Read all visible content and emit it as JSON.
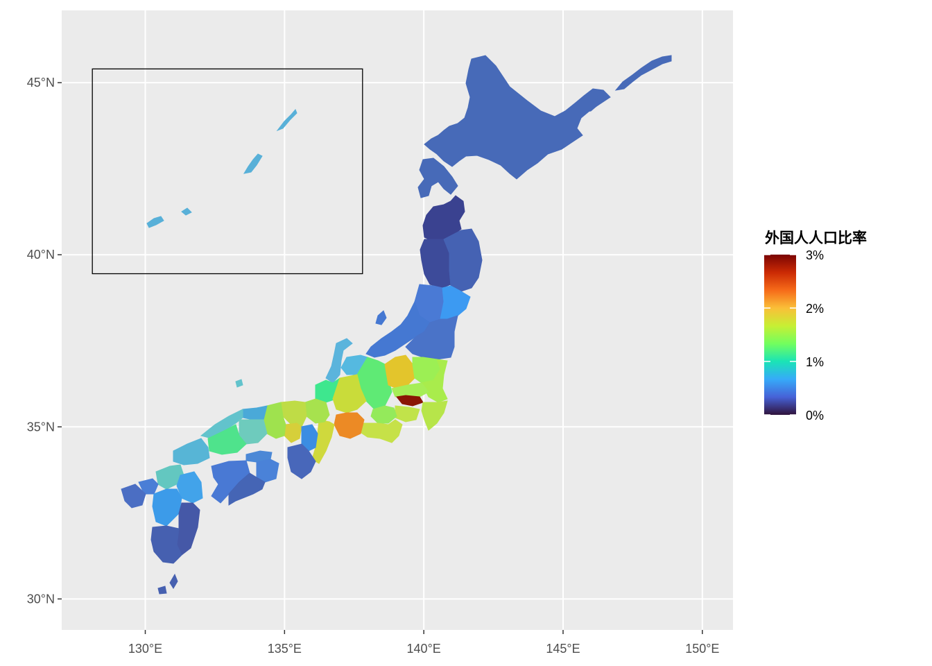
{
  "chart_data": {
    "type": "choropleth-map",
    "x_axis": {
      "range": [
        127,
        151.1
      ],
      "ticks": [
        130,
        135,
        140,
        145,
        150
      ],
      "tick_labels": [
        "130°E",
        "135°E",
        "140°E",
        "145°E",
        "150°E"
      ]
    },
    "y_axis": {
      "range": [
        29.1,
        47.1
      ],
      "ticks": [
        30,
        35,
        40,
        45
      ],
      "tick_labels": [
        "30°N",
        "35°N",
        "40°N",
        "45°N"
      ]
    },
    "grid": true,
    "inset_box": {
      "lon": [
        128.1,
        137.8
      ],
      "lat": [
        39.45,
        45.4
      ]
    },
    "legend": {
      "title": "外国人人口比率",
      "placement": "right",
      "range": [
        0,
        3.0
      ],
      "breaks": [
        0,
        1,
        2,
        3
      ],
      "labels": [
        "0%",
        "1%",
        "2%",
        "3%"
      ],
      "colors": [
        "#30123b",
        "#4662d7",
        "#36aaf9",
        "#1ae4b6",
        "#72fe5e",
        "#c7ef34",
        "#fabf38",
        "#f66b19",
        "#cb2a04",
        "#7a0403"
      ]
    }
  },
  "regions": [
    {
      "name": "Hokkaido",
      "ratio": 0.55,
      "color": "#476ab8"
    },
    {
      "name": "Aomori",
      "ratio": 0.35,
      "color": "#3a4290"
    },
    {
      "name": "Akita",
      "ratio": 0.35,
      "color": "#3d4b9a"
    },
    {
      "name": "Iwate",
      "ratio": 0.5,
      "color": "#4562b3"
    },
    {
      "name": "Yamagata",
      "ratio": 0.7,
      "color": "#4a7ad5"
    },
    {
      "name": "Miyagi",
      "ratio": 0.9,
      "color": "#3c9af2"
    },
    {
      "name": "Niigata",
      "ratio": 0.7,
      "color": "#4578d2"
    },
    {
      "name": "Fukushima",
      "ratio": 0.65,
      "color": "#4a73c8"
    },
    {
      "name": "Toyama",
      "ratio": 1.2,
      "color": "#55b9e0"
    },
    {
      "name": "Ishikawa",
      "ratio": 1.1,
      "color": "#5bb4dc"
    },
    {
      "name": "Fukui",
      "ratio": 1.6,
      "color": "#3ee78e"
    },
    {
      "name": "Nagano",
      "ratio": 1.5,
      "color": "#5fea75"
    },
    {
      "name": "Gunma",
      "ratio": 2.0,
      "color": "#e3c52c"
    },
    {
      "name": "Tochigi",
      "ratio": 1.6,
      "color": "#9cef54"
    },
    {
      "name": "Ibaraki",
      "ratio": 1.7,
      "color": "#a9ec4c"
    },
    {
      "name": "Saitama",
      "ratio": 1.6,
      "color": "#a6ee57"
    },
    {
      "name": "Tokyo",
      "ratio": 3.0,
      "color": "#8a1505"
    },
    {
      "name": "Chiba",
      "ratio": 1.8,
      "color": "#b7e54a"
    },
    {
      "name": "Kanagawa",
      "ratio": 1.7,
      "color": "#c1e34a"
    },
    {
      "name": "Yamanashi",
      "ratio": 1.6,
      "color": "#94ea5b"
    },
    {
      "name": "Shizuoka",
      "ratio": 1.9,
      "color": "#c6e148"
    },
    {
      "name": "Gifu",
      "ratio": 1.9,
      "color": "#c9dc3a"
    },
    {
      "name": "Aichi",
      "ratio": 2.3,
      "color": "#ec8a25"
    },
    {
      "name": "Mie",
      "ratio": 1.8,
      "color": "#cfd93d"
    },
    {
      "name": "Shiga",
      "ratio": 1.8,
      "color": "#a7e24e"
    },
    {
      "name": "Kyoto",
      "ratio": 1.9,
      "color": "#bfdc46"
    },
    {
      "name": "Osaka",
      "ratio": 2.0,
      "color": "#d6cf3a"
    },
    {
      "name": "Hyogo",
      "ratio": 1.8,
      "color": "#9fe24e"
    },
    {
      "name": "Nara",
      "ratio": 0.9,
      "color": "#3b8de2"
    },
    {
      "name": "Wakayama",
      "ratio": 0.6,
      "color": "#4867ba"
    },
    {
      "name": "Tottori",
      "ratio": 0.9,
      "color": "#4aa9d8"
    },
    {
      "name": "Shimane",
      "ratio": 1.2,
      "color": "#62c3cc"
    },
    {
      "name": "Okayama",
      "ratio": 1.3,
      "color": "#6ecbbd"
    },
    {
      "name": "Hiroshima",
      "ratio": 1.5,
      "color": "#4fe38c"
    },
    {
      "name": "Yamaguchi",
      "ratio": 1.1,
      "color": "#57b5d6"
    },
    {
      "name": "Tokushima",
      "ratio": 0.7,
      "color": "#4a82d8"
    },
    {
      "name": "Kagawa",
      "ratio": 0.8,
      "color": "#4b88d6"
    },
    {
      "name": "Ehime",
      "ratio": 0.7,
      "color": "#4979d4"
    },
    {
      "name": "Kochi",
      "ratio": 0.5,
      "color": "#4565b5"
    },
    {
      "name": "Fukuoka",
      "ratio": 1.3,
      "color": "#63c7c0"
    },
    {
      "name": "Saga",
      "ratio": 0.8,
      "color": "#4a7ed6"
    },
    {
      "name": "Nagasaki",
      "ratio": 0.6,
      "color": "#4b6ec3"
    },
    {
      "name": "Oita",
      "ratio": 1.0,
      "color": "#42a3ea"
    },
    {
      "name": "Kumamoto",
      "ratio": 0.9,
      "color": "#3c9be9"
    },
    {
      "name": "Miyazaki",
      "ratio": 0.5,
      "color": "#4558a7"
    },
    {
      "name": "Kagoshima",
      "ratio": 0.55,
      "color": "#4660b0"
    },
    {
      "name": "Okinawa",
      "ratio": 1.2,
      "color": "#58b0d8"
    }
  ]
}
